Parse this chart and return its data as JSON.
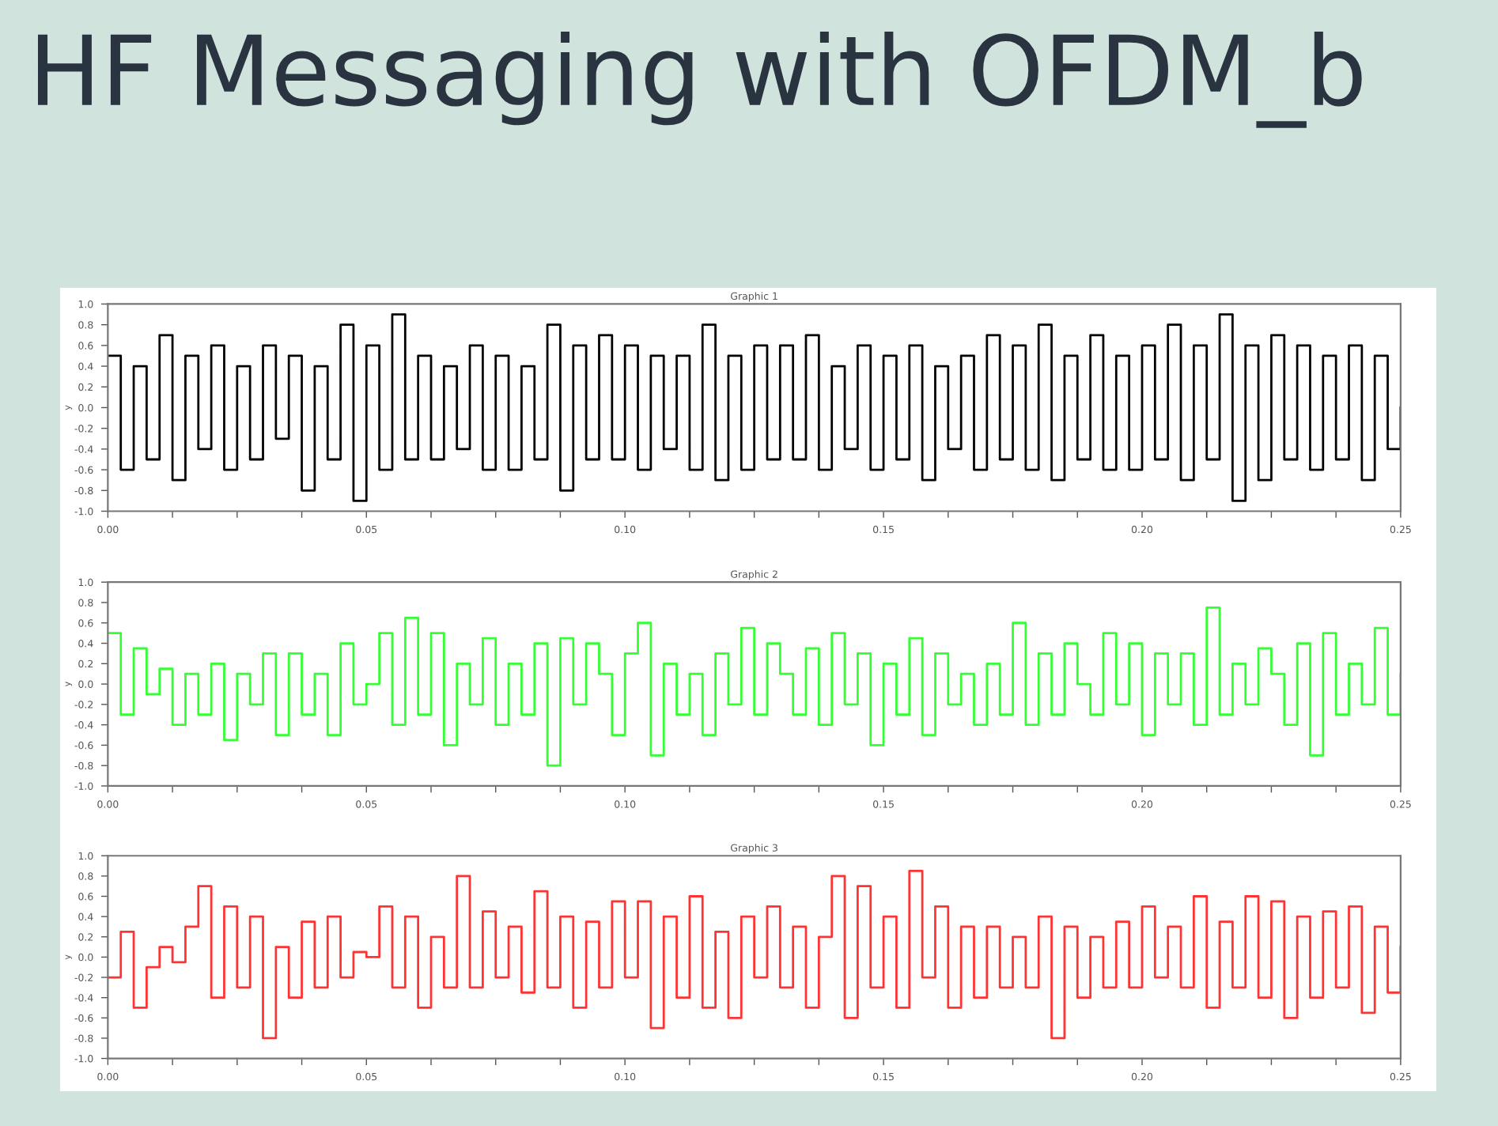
{
  "chart_data": [
    {
      "type": "step",
      "title": "Graphic 1",
      "ylabel": "y",
      "annotations": [
        "HF Messaging with OFDM_b"
      ],
      "x": [
        0,
        0.0025,
        0.005,
        0.0075,
        0.01,
        0.0125,
        0.015,
        0.0175,
        0.02,
        0.0225,
        0.025,
        0.0275,
        0.03,
        0.0325,
        0.035,
        0.0375,
        0.04,
        0.0425,
        0.045,
        0.0475,
        0.05,
        0.0525,
        0.055,
        0.0575,
        0.06,
        0.0625,
        0.065,
        0.0675,
        0.07,
        0.0725,
        0.075,
        0.0775,
        0.08,
        0.0825,
        0.085,
        0.0875,
        0.09,
        0.0925,
        0.095,
        0.0975,
        0.1,
        0.1025,
        0.105,
        0.1075,
        0.11,
        0.1125,
        0.115,
        0.1175,
        0.12,
        0.1225,
        0.125,
        0.1275,
        0.13,
        0.1325,
        0.135,
        0.1375,
        0.14,
        0.1425,
        0.145,
        0.1475,
        0.15,
        0.1525,
        0.155,
        0.1575,
        0.16,
        0.1625,
        0.165,
        0.1675,
        0.17,
        0.1725,
        0.175,
        0.1775,
        0.18,
        0.1825,
        0.185,
        0.1875,
        0.19,
        0.1925,
        0.195,
        0.1975,
        0.2,
        0.2025,
        0.205,
        0.2075,
        0.21,
        0.2125,
        0.215,
        0.2175,
        0.22,
        0.2225,
        0.225,
        0.2275,
        0.23,
        0.2325,
        0.235,
        0.2375,
        0.24,
        0.2425,
        0.245,
        0.2475,
        0.25
      ],
      "series": [
        {
          "color": "#000000",
          "values": [
            0.5,
            -0.6,
            0.4,
            -0.5,
            0.7,
            -0.7,
            0.5,
            -0.4,
            0.6,
            -0.6,
            0.4,
            -0.5,
            0.6,
            -0.3,
            0.5,
            -0.8,
            0.4,
            -0.5,
            0.8,
            -0.9,
            0.6,
            -0.6,
            0.9,
            -0.5,
            0.5,
            -0.5,
            0.4,
            -0.4,
            0.6,
            -0.6,
            0.5,
            -0.6,
            0.4,
            -0.5,
            0.8,
            -0.8,
            0.6,
            -0.5,
            0.7,
            -0.5,
            0.6,
            -0.6,
            0.5,
            -0.4,
            0.5,
            -0.6,
            0.8,
            -0.7,
            0.5,
            -0.6,
            0.6,
            -0.5,
            0.6,
            -0.5,
            0.7,
            -0.6,
            0.4,
            -0.4,
            0.6,
            -0.6,
            0.5,
            -0.5,
            0.6,
            -0.7,
            0.4,
            -0.4,
            0.5,
            -0.6,
            0.7,
            -0.5,
            0.6,
            -0.6,
            0.8,
            -0.7,
            0.5,
            -0.5,
            0.7,
            -0.6,
            0.5,
            -0.6,
            0.6,
            -0.5,
            0.8,
            -0.7,
            0.6,
            -0.5,
            0.9,
            -0.9,
            0.6,
            -0.7,
            0.7,
            -0.5,
            0.6,
            -0.6,
            0.5,
            -0.5,
            0.6,
            -0.7,
            0.5,
            -0.4,
            0.0
          ]
        }
      ],
      "xlim": [
        0,
        0.25
      ],
      "ylim": [
        -1.0,
        1.0
      ],
      "xticks": [
        {
          "value": 0,
          "label": "0.00"
        },
        {
          "value": 0.0125,
          "label": null
        },
        {
          "value": 0.025,
          "label": null
        },
        {
          "value": 0.0375,
          "label": null
        },
        {
          "value": 0.05,
          "label": "0.05"
        },
        {
          "value": 0.0625,
          "label": null
        },
        {
          "value": 0.075,
          "label": null
        },
        {
          "value": 0.0875,
          "label": null
        },
        {
          "value": 0.1,
          "label": "0.10"
        },
        {
          "value": 0.1125,
          "label": null
        },
        {
          "value": 0.125,
          "label": null
        },
        {
          "value": 0.1375,
          "label": null
        },
        {
          "value": 0.15,
          "label": "0.15"
        },
        {
          "value": 0.1625,
          "label": null
        },
        {
          "value": 0.175,
          "label": null
        },
        {
          "value": 0.1875,
          "label": null
        },
        {
          "value": 0.2,
          "label": "0.20"
        },
        {
          "value": 0.2125,
          "label": null
        },
        {
          "value": 0.225,
          "label": null
        },
        {
          "value": 0.2375,
          "label": null
        },
        {
          "value": 0.25,
          "label": "0.25"
        }
      ],
      "yticks": [
        {
          "value": -1.0,
          "label": "-1.0"
        },
        -0.8,
        -0.6,
        -0.4,
        -0.2,
        {
          "value": 0.0,
          "label": "0.0"
        },
        0.2,
        0.4,
        0.6,
        0.8,
        {
          "value": 1.0,
          "label": "1.0"
        }
      ],
      "grid": false,
      "line_style": "solid"
    },
    {
      "type": "step",
      "title": "Graphic 2",
      "ylabel": "y",
      "x": [
        0,
        0.0025,
        0.005,
        0.0075,
        0.01,
        0.0125,
        0.015,
        0.0175,
        0.02,
        0.0225,
        0.025,
        0.0275,
        0.03,
        0.0325,
        0.035,
        0.0375,
        0.04,
        0.0425,
        0.045,
        0.0475,
        0.05,
        0.0525,
        0.055,
        0.0575,
        0.06,
        0.0625,
        0.065,
        0.0675,
        0.07,
        0.0725,
        0.075,
        0.0775,
        0.08,
        0.0825,
        0.085,
        0.0875,
        0.09,
        0.0925,
        0.095,
        0.0975,
        0.1,
        0.1025,
        0.105,
        0.1075,
        0.11,
        0.1125,
        0.115,
        0.1175,
        0.12,
        0.1225,
        0.125,
        0.1275,
        0.13,
        0.1325,
        0.135,
        0.1375,
        0.14,
        0.1425,
        0.145,
        0.1475,
        0.15,
        0.1525,
        0.155,
        0.1575,
        0.16,
        0.1625,
        0.165,
        0.1675,
        0.17,
        0.1725,
        0.175,
        0.1775,
        0.18,
        0.1825,
        0.185,
        0.1875,
        0.19,
        0.1925,
        0.195,
        0.1975,
        0.2,
        0.2025,
        0.205,
        0.2075,
        0.21,
        0.2125,
        0.215,
        0.2175,
        0.22,
        0.2225,
        0.225,
        0.2275,
        0.23,
        0.2325,
        0.235,
        0.2375,
        0.24,
        0.2425,
        0.245,
        0.2475,
        0.25
      ],
      "series": [
        {
          "color": "#33ff33",
          "values": [
            0.5,
            -0.3,
            0.35,
            -0.1,
            0.15,
            -0.4,
            0.1,
            -0.3,
            0.2,
            -0.55,
            0.1,
            -0.2,
            0.3,
            -0.5,
            0.3,
            -0.3,
            0.1,
            -0.5,
            0.4,
            -0.2,
            0.0,
            0.5,
            -0.4,
            0.65,
            -0.3,
            0.5,
            -0.6,
            0.2,
            -0.2,
            0.45,
            -0.4,
            0.2,
            -0.3,
            0.4,
            -0.8,
            0.45,
            -0.2,
            0.4,
            0.1,
            -0.5,
            0.3,
            0.6,
            -0.7,
            0.2,
            -0.3,
            0.1,
            -0.5,
            0.3,
            -0.2,
            0.55,
            -0.3,
            0.4,
            0.1,
            -0.3,
            0.35,
            -0.4,
            0.5,
            -0.2,
            0.3,
            -0.6,
            0.2,
            -0.3,
            0.45,
            -0.5,
            0.3,
            -0.2,
            0.1,
            -0.4,
            0.2,
            -0.3,
            0.6,
            -0.4,
            0.3,
            -0.3,
            0.4,
            0.0,
            -0.3,
            0.5,
            -0.2,
            0.4,
            -0.5,
            0.3,
            -0.2,
            0.3,
            -0.4,
            0.75,
            -0.3,
            0.2,
            -0.2,
            0.35,
            0.1,
            -0.4,
            0.4,
            -0.7,
            0.5,
            -0.3,
            0.2,
            -0.2,
            0.55,
            -0.3,
            0.1
          ]
        }
      ],
      "xlim": [
        0,
        0.25
      ],
      "ylim": [
        -1.0,
        1.0
      ],
      "xticks": [
        {
          "value": 0,
          "label": "0.00"
        },
        {
          "value": 0.0125,
          "label": null
        },
        {
          "value": 0.025,
          "label": null
        },
        {
          "value": 0.0375,
          "label": null
        },
        {
          "value": 0.05,
          "label": "0.05"
        },
        {
          "value": 0.0625,
          "label": null
        },
        {
          "value": 0.075,
          "label": null
        },
        {
          "value": 0.0875,
          "label": null
        },
        {
          "value": 0.1,
          "label": "0.10"
        },
        {
          "value": 0.1125,
          "label": null
        },
        {
          "value": 0.125,
          "label": null
        },
        {
          "value": 0.1375,
          "label": null
        },
        {
          "value": 0.15,
          "label": "0.15"
        },
        {
          "value": 0.1625,
          "label": null
        },
        {
          "value": 0.175,
          "label": null
        },
        {
          "value": 0.1875,
          "label": null
        },
        {
          "value": 0.2,
          "label": "0.20"
        },
        {
          "value": 0.2125,
          "label": null
        },
        {
          "value": 0.225,
          "label": null
        },
        {
          "value": 0.2375,
          "label": null
        },
        {
          "value": 0.25,
          "label": "0.25"
        }
      ],
      "yticks": [
        {
          "value": -1.0,
          "label": "-1.0"
        },
        -0.8,
        -0.6,
        -0.4,
        -0.2,
        {
          "value": 0.0,
          "label": "0.0"
        },
        0.2,
        0.4,
        0.6,
        0.8,
        {
          "value": 1.0,
          "label": "1.0"
        }
      ],
      "grid": false,
      "line_style": "solid"
    },
    {
      "type": "step",
      "title": "Graphic 3",
      "ylabel": "y",
      "x": [
        0,
        0.0025,
        0.005,
        0.0075,
        0.01,
        0.0125,
        0.015,
        0.0175,
        0.02,
        0.0225,
        0.025,
        0.0275,
        0.03,
        0.0325,
        0.035,
        0.0375,
        0.04,
        0.0425,
        0.045,
        0.0475,
        0.05,
        0.0525,
        0.055,
        0.0575,
        0.06,
        0.0625,
        0.065,
        0.0675,
        0.07,
        0.0725,
        0.075,
        0.0775,
        0.08,
        0.0825,
        0.085,
        0.0875,
        0.09,
        0.0925,
        0.095,
        0.0975,
        0.1,
        0.1025,
        0.105,
        0.1075,
        0.11,
        0.1125,
        0.115,
        0.1175,
        0.12,
        0.1225,
        0.125,
        0.1275,
        0.13,
        0.1325,
        0.135,
        0.1375,
        0.14,
        0.1425,
        0.145,
        0.1475,
        0.15,
        0.1525,
        0.155,
        0.1575,
        0.16,
        0.1625,
        0.165,
        0.1675,
        0.17,
        0.1725,
        0.175,
        0.1775,
        0.18,
        0.1825,
        0.185,
        0.1875,
        0.19,
        0.1925,
        0.195,
        0.1975,
        0.2,
        0.2025,
        0.205,
        0.2075,
        0.21,
        0.2125,
        0.215,
        0.2175,
        0.22,
        0.2225,
        0.225,
        0.2275,
        0.23,
        0.2325,
        0.235,
        0.2375,
        0.24,
        0.2425,
        0.245,
        0.2475,
        0.25
      ],
      "series": [
        {
          "color": "#ff3333",
          "values": [
            -0.2,
            0.25,
            -0.5,
            -0.1,
            0.1,
            -0.05,
            0.3,
            0.7,
            -0.4,
            0.5,
            -0.3,
            0.4,
            -0.8,
            0.1,
            -0.4,
            0.35,
            -0.3,
            0.4,
            -0.2,
            0.05,
            0.0,
            0.5,
            -0.3,
            0.4,
            -0.5,
            0.2,
            -0.3,
            0.8,
            -0.3,
            0.45,
            -0.2,
            0.3,
            -0.35,
            0.65,
            -0.3,
            0.4,
            -0.5,
            0.35,
            -0.3,
            0.55,
            -0.2,
            0.55,
            -0.7,
            0.4,
            -0.4,
            0.6,
            -0.5,
            0.25,
            -0.6,
            0.4,
            -0.2,
            0.5,
            -0.3,
            0.3,
            -0.5,
            0.2,
            0.8,
            -0.6,
            0.7,
            -0.3,
            0.4,
            -0.5,
            0.85,
            -0.2,
            0.5,
            -0.5,
            0.3,
            -0.4,
            0.3,
            -0.3,
            0.2,
            -0.3,
            0.4,
            -0.8,
            0.3,
            -0.4,
            0.2,
            -0.3,
            0.35,
            -0.3,
            0.5,
            -0.2,
            0.3,
            -0.3,
            0.6,
            -0.5,
            0.35,
            -0.3,
            0.6,
            -0.4,
            0.55,
            -0.6,
            0.4,
            -0.4,
            0.45,
            -0.3,
            0.5,
            -0.55,
            0.3,
            -0.35,
            0.1
          ]
        }
      ],
      "xlim": [
        0,
        0.25
      ],
      "ylim": [
        -1.0,
        1.0
      ],
      "xticks": [
        {
          "value": 0,
          "label": "0.00"
        },
        {
          "value": 0.0125,
          "label": null
        },
        {
          "value": 0.025,
          "label": null
        },
        {
          "value": 0.0375,
          "label": null
        },
        {
          "value": 0.05,
          "label": "0.05"
        },
        {
          "value": 0.0625,
          "label": null
        },
        {
          "value": 0.075,
          "label": null
        },
        {
          "value": 0.0875,
          "label": null
        },
        {
          "value": 0.1,
          "label": "0.10"
        },
        {
          "value": 0.1125,
          "label": null
        },
        {
          "value": 0.125,
          "label": null
        },
        {
          "value": 0.1375,
          "label": null
        },
        {
          "value": 0.15,
          "label": "0.15"
        },
        {
          "value": 0.1625,
          "label": null
        },
        {
          "value": 0.175,
          "label": null
        },
        {
          "value": 0.1875,
          "label": null
        },
        {
          "value": 0.2,
          "label": "0.20"
        },
        {
          "value": 0.2125,
          "label": null
        },
        {
          "value": 0.225,
          "label": null
        },
        {
          "value": 0.2375,
          "label": null
        },
        {
          "value": 0.25,
          "label": "0.25"
        }
      ],
      "yticks": [
        {
          "value": -1.0,
          "label": "-1.0"
        },
        -0.8,
        -0.6,
        -0.4,
        -0.2,
        {
          "value": 0.0,
          "label": "0.0"
        },
        0.2,
        0.4,
        0.6,
        0.8,
        {
          "value": 1.0,
          "label": "1.0"
        }
      ],
      "grid": false,
      "line_style": "solid"
    }
  ]
}
